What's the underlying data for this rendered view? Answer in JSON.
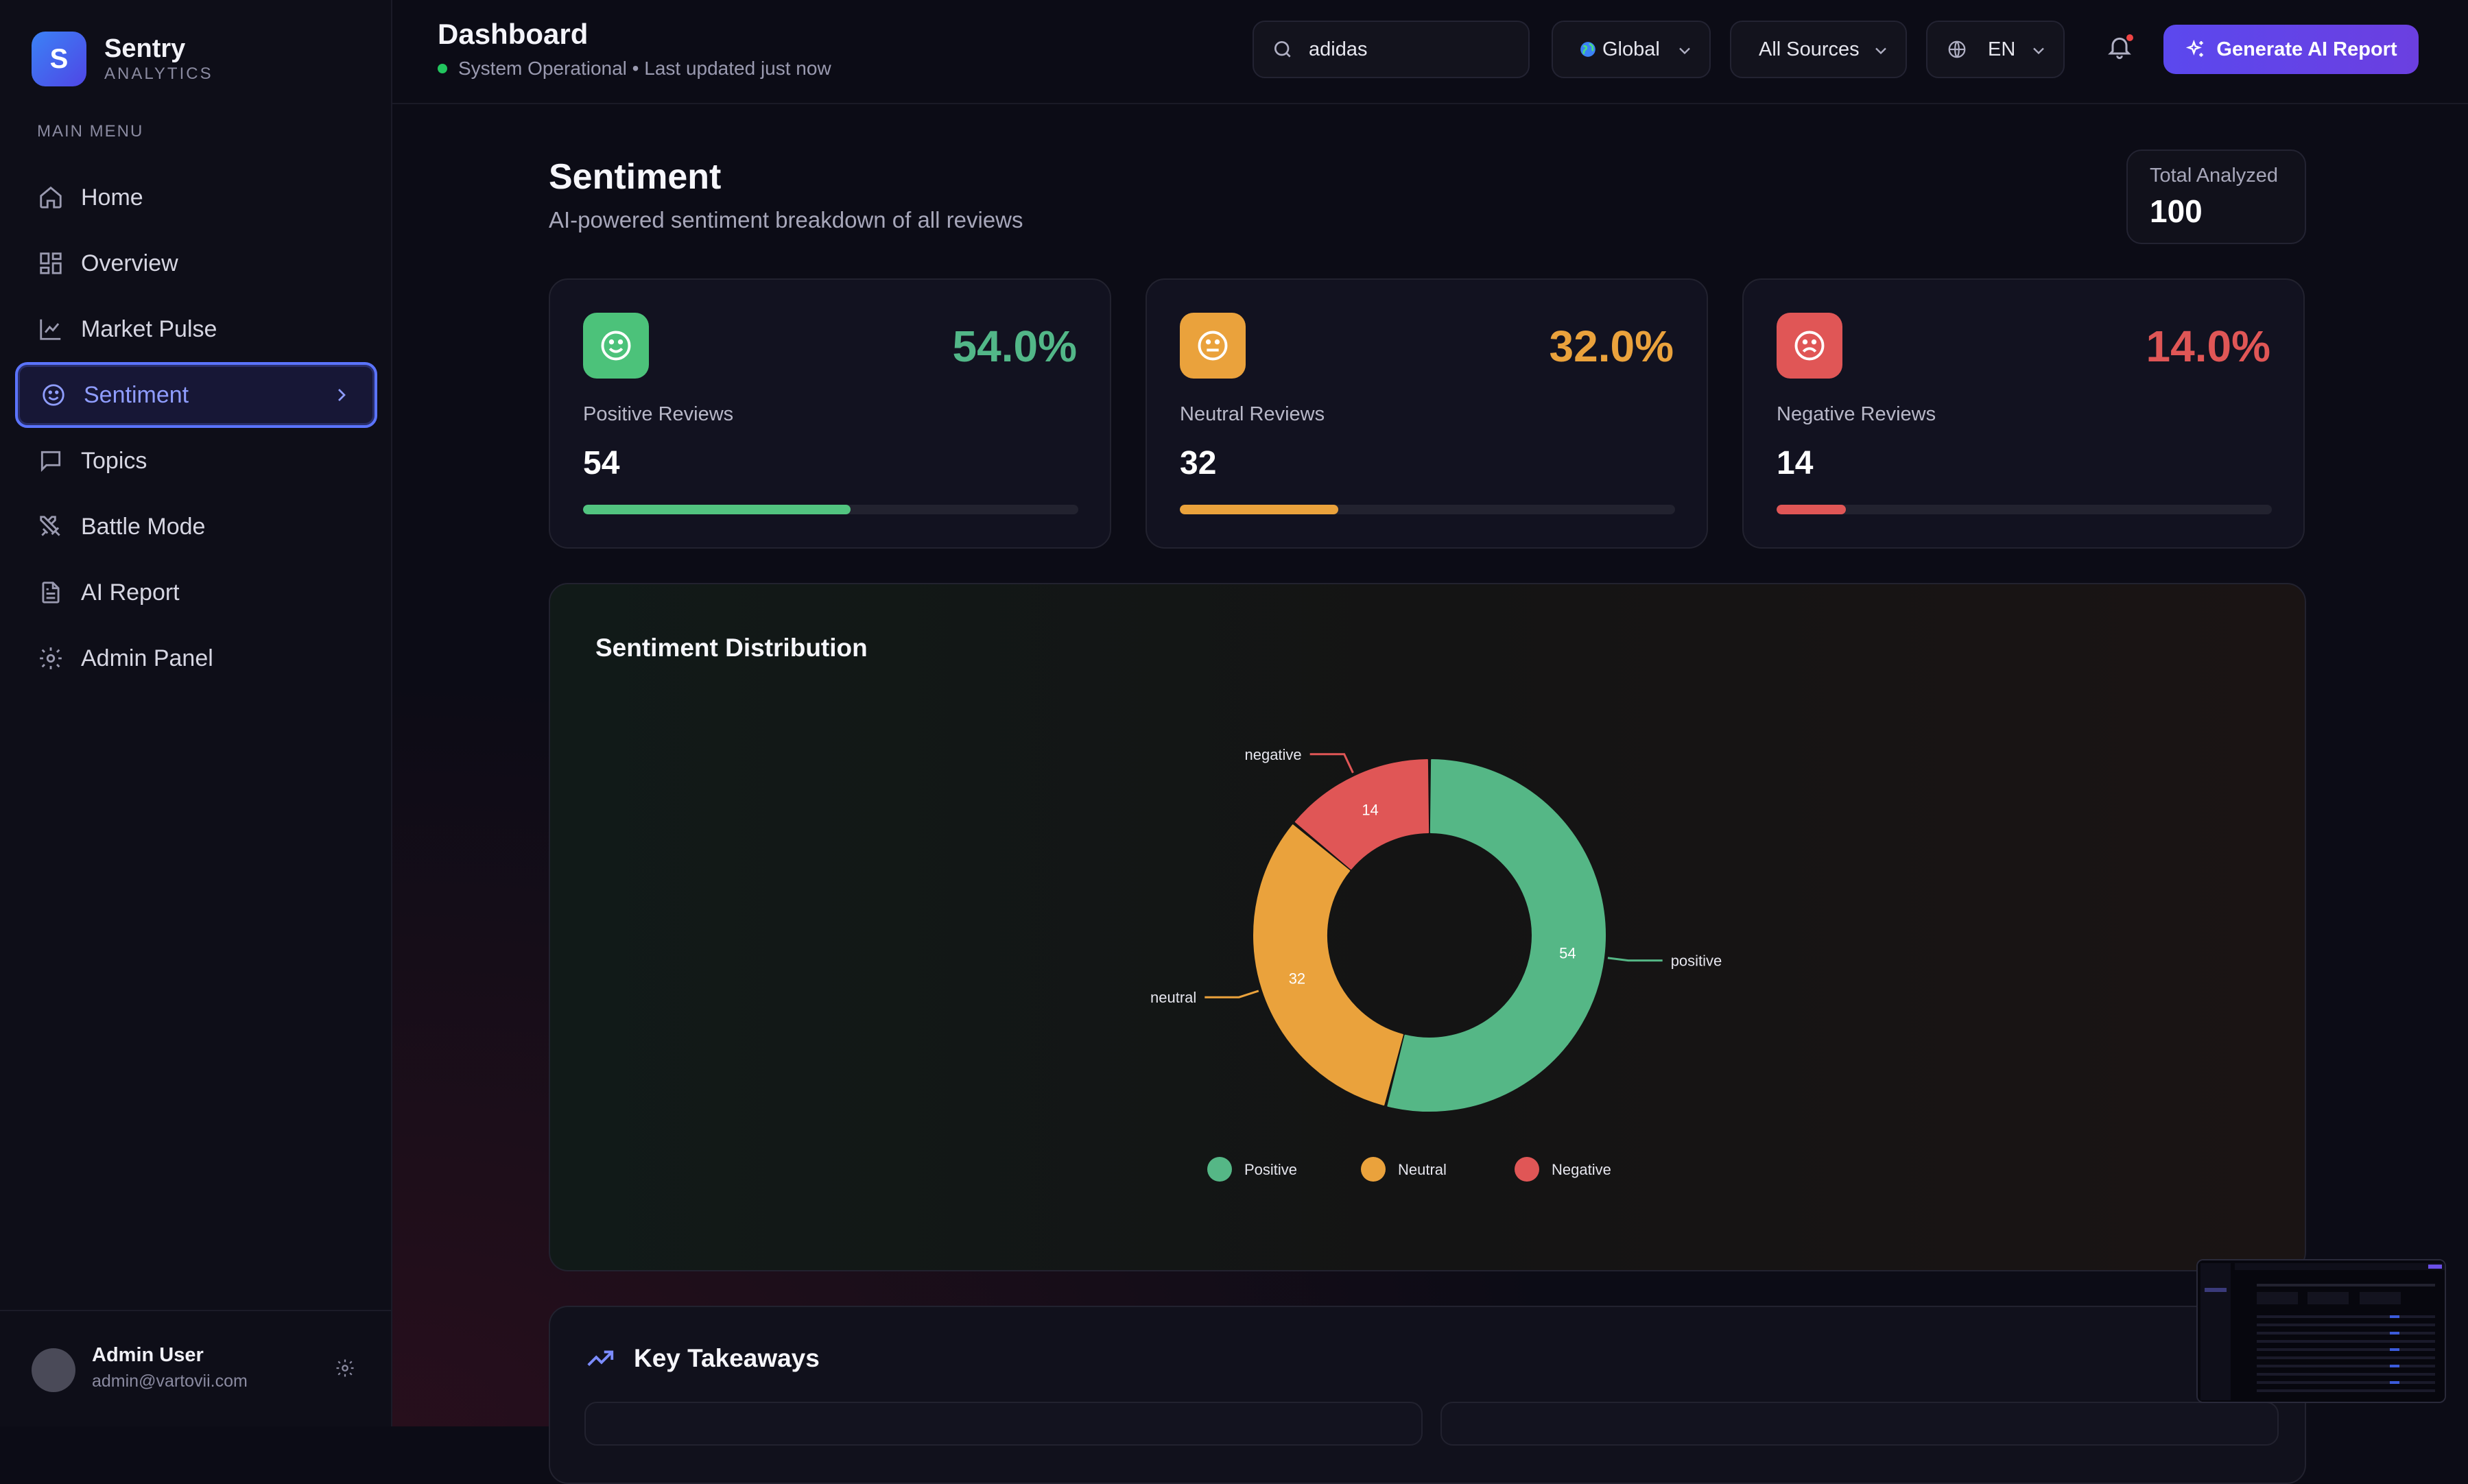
{
  "brand": {
    "name": "Sentry",
    "subtitle": "ANALYTICS",
    "logo_letter": "S",
    "accent": "#4f5bff"
  },
  "sidebar": {
    "heading": "MAIN MENU",
    "items": [
      {
        "label": "Home",
        "icon": "home-icon",
        "active": false
      },
      {
        "label": "Overview",
        "icon": "grid-icon",
        "active": false
      },
      {
        "label": "Market Pulse",
        "icon": "line-chart-icon",
        "active": false
      },
      {
        "label": "Sentiment",
        "icon": "smile-icon",
        "active": true
      },
      {
        "label": "Topics",
        "icon": "message-square-icon",
        "active": false
      },
      {
        "label": "Battle Mode",
        "icon": "swords-icon",
        "active": false
      },
      {
        "label": "AI Report",
        "icon": "document-icon",
        "active": false
      },
      {
        "label": "Admin Panel",
        "icon": "gear-icon",
        "active": false
      }
    ],
    "user": {
      "name": "Admin User",
      "email": "admin@vartovii.com"
    }
  },
  "header": {
    "title": "Dashboard",
    "status_text": "System Operational • Last updated just now",
    "search": {
      "value": "adidas",
      "icon": "search-icon"
    },
    "region": {
      "selected": "Global",
      "icon": "globe-emoji-icon"
    },
    "sources": {
      "selected": "All Sources"
    },
    "language": {
      "selected": "EN"
    },
    "generate_label": "Generate AI Report"
  },
  "page": {
    "title": "Sentiment",
    "subtitle": "AI-powered sentiment breakdown of all reviews",
    "total": {
      "label": "Total Analyzed",
      "value": "100"
    }
  },
  "cards": {
    "positive": {
      "percent": "54.0%",
      "label": "Positive Reviews",
      "count": "54",
      "fraction": 0.54,
      "color": "#52b788"
    },
    "neutral": {
      "percent": "32.0%",
      "label": "Neutral Reviews",
      "count": "32",
      "fraction": 0.32,
      "color": "#eaa23c"
    },
    "negative": {
      "percent": "14.0%",
      "label": "Negative Reviews",
      "count": "14",
      "fraction": 0.14,
      "color": "#e05656"
    }
  },
  "distribution": {
    "title": "Sentiment Distribution"
  },
  "chart_data": {
    "type": "pie",
    "donut": true,
    "categories": [
      "positive",
      "neutral",
      "negative"
    ],
    "values": [
      54,
      32,
      14
    ],
    "colors": [
      "#55b786",
      "#eaa23c",
      "#e05656"
    ],
    "legend": [
      "Positive",
      "Neutral",
      "Negative"
    ],
    "legend_position": "bottom"
  },
  "takeaways": {
    "title": "Key Takeaways",
    "icon": "trending-up-icon"
  }
}
